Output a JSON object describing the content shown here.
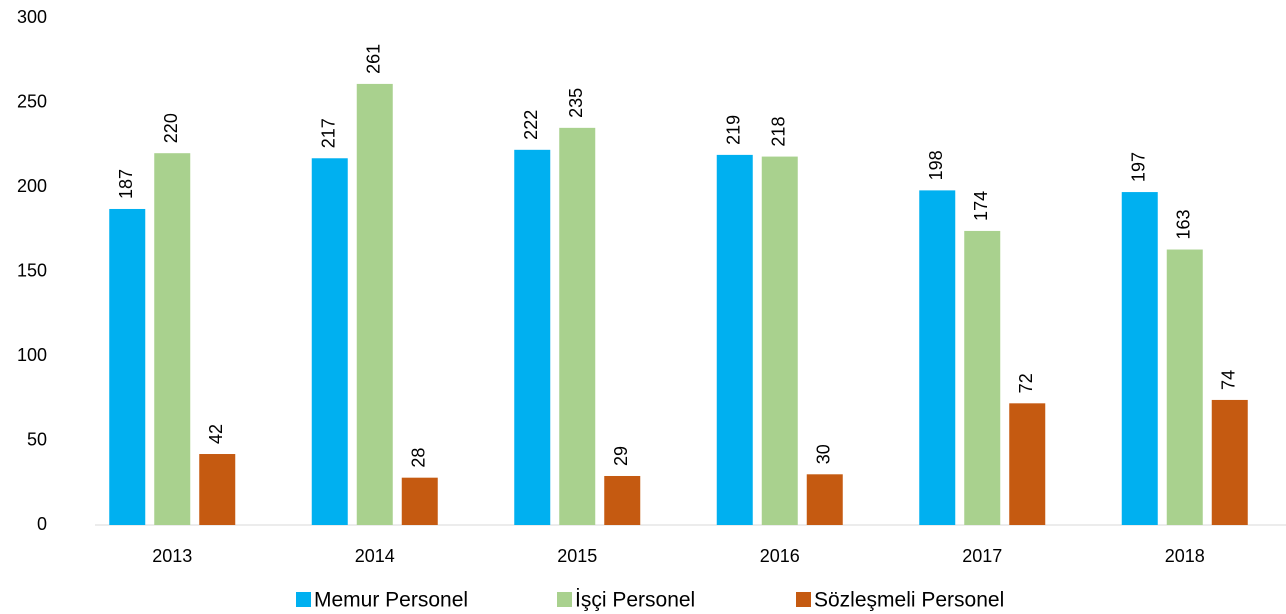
{
  "chart_data": {
    "type": "bar",
    "categories": [
      "2013",
      "2014",
      "2015",
      "2016",
      "2017",
      "2018"
    ],
    "series": [
      {
        "name": "Memur Personel",
        "color": "#00b0f0",
        "values": [
          187,
          217,
          222,
          219,
          198,
          197
        ]
      },
      {
        "name": "İşçi Personel",
        "color": "#a9d18e",
        "values": [
          220,
          261,
          235,
          218,
          174,
          163
        ]
      },
      {
        "name": "Sözleşmeli Personel",
        "color": "#c55a11",
        "values": [
          42,
          28,
          29,
          30,
          72,
          74
        ]
      }
    ],
    "ylim": [
      0,
      300
    ],
    "yticks": [
      0,
      50,
      100,
      150,
      200,
      250,
      300
    ],
    "grid": false,
    "legend": "bottom"
  }
}
